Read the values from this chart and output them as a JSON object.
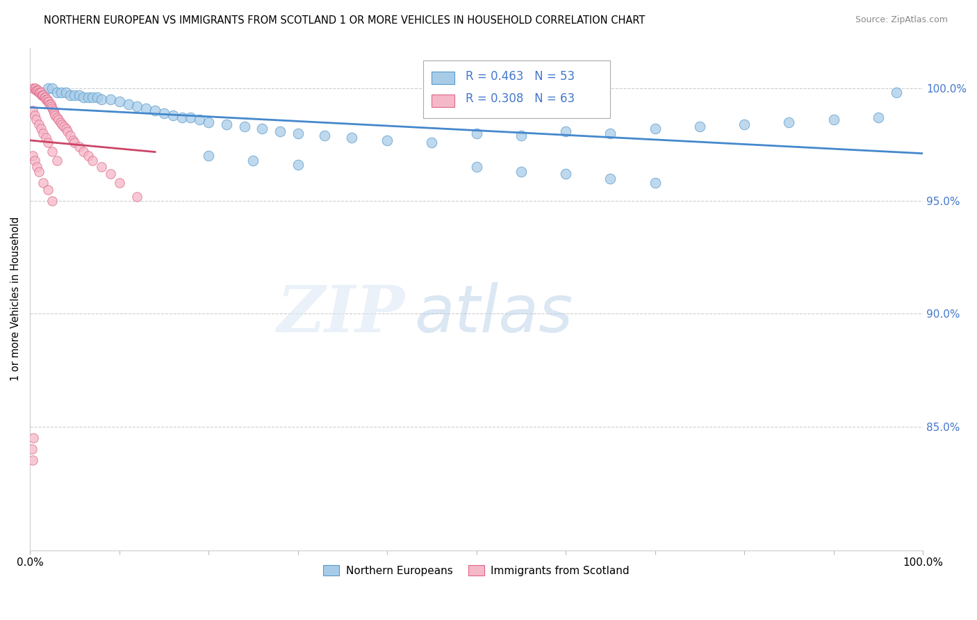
{
  "title": "NORTHERN EUROPEAN VS IMMIGRANTS FROM SCOTLAND 1 OR MORE VEHICLES IN HOUSEHOLD CORRELATION CHART",
  "source": "Source: ZipAtlas.com",
  "ylabel": "1 or more Vehicles in Household",
  "ytick_labels": [
    "100.0%",
    "95.0%",
    "90.0%",
    "85.0%"
  ],
  "ytick_vals": [
    1.0,
    0.95,
    0.9,
    0.85
  ],
  "xlim": [
    0.0,
    1.0
  ],
  "ylim": [
    0.795,
    1.018
  ],
  "legend_label1": "Northern Europeans",
  "legend_label2": "Immigrants from Scotland",
  "legend_R1": "R = 0.463",
  "legend_N1": "N = 53",
  "legend_R2": "R = 0.308",
  "legend_N2": "N = 63",
  "color_blue": "#a8cce8",
  "color_pink": "#f5b8c8",
  "edge_blue": "#5599cc",
  "edge_pink": "#dd6688",
  "line_blue": "#4488cc",
  "line_pink": "#cc4466",
  "watermark_zip": "ZIP",
  "watermark_atlas": "atlas",
  "blue_scatter_x": [
    0.02,
    0.025,
    0.03,
    0.035,
    0.04,
    0.045,
    0.05,
    0.055,
    0.06,
    0.065,
    0.07,
    0.075,
    0.08,
    0.09,
    0.1,
    0.11,
    0.12,
    0.13,
    0.14,
    0.15,
    0.16,
    0.17,
    0.18,
    0.19,
    0.2,
    0.22,
    0.24,
    0.26,
    0.28,
    0.3,
    0.33,
    0.36,
    0.4,
    0.45,
    0.5,
    0.55,
    0.6,
    0.65,
    0.7,
    0.75,
    0.8,
    0.85,
    0.9,
    0.95,
    0.97,
    0.5,
    0.55,
    0.6,
    0.65,
    0.7,
    0.2,
    0.25,
    0.3
  ],
  "blue_scatter_y": [
    1.0,
    1.0,
    0.998,
    0.998,
    0.998,
    0.997,
    0.997,
    0.997,
    0.996,
    0.996,
    0.996,
    0.996,
    0.995,
    0.995,
    0.994,
    0.993,
    0.992,
    0.991,
    0.99,
    0.989,
    0.988,
    0.987,
    0.987,
    0.986,
    0.985,
    0.984,
    0.983,
    0.982,
    0.981,
    0.98,
    0.979,
    0.978,
    0.977,
    0.976,
    0.98,
    0.979,
    0.981,
    0.98,
    0.982,
    0.983,
    0.984,
    0.985,
    0.986,
    0.987,
    0.998,
    0.965,
    0.963,
    0.962,
    0.96,
    0.958,
    0.97,
    0.968,
    0.966
  ],
  "pink_scatter_x": [
    0.003,
    0.005,
    0.006,
    0.007,
    0.008,
    0.009,
    0.01,
    0.011,
    0.012,
    0.013,
    0.014,
    0.015,
    0.016,
    0.017,
    0.018,
    0.019,
    0.02,
    0.021,
    0.022,
    0.023,
    0.024,
    0.025,
    0.026,
    0.027,
    0.028,
    0.03,
    0.032,
    0.034,
    0.036,
    0.038,
    0.04,
    0.042,
    0.045,
    0.048,
    0.05,
    0.055,
    0.06,
    0.065,
    0.07,
    0.08,
    0.09,
    0.1,
    0.12,
    0.003,
    0.005,
    0.007,
    0.01,
    0.012,
    0.015,
    0.018,
    0.02,
    0.025,
    0.03,
    0.003,
    0.005,
    0.008,
    0.01,
    0.015,
    0.02,
    0.025,
    0.002,
    0.003,
    0.004
  ],
  "pink_scatter_y": [
    1.0,
    1.0,
    1.0,
    0.999,
    0.999,
    0.999,
    0.998,
    0.998,
    0.998,
    0.997,
    0.997,
    0.997,
    0.996,
    0.996,
    0.995,
    0.995,
    0.994,
    0.994,
    0.993,
    0.993,
    0.992,
    0.991,
    0.99,
    0.989,
    0.988,
    0.987,
    0.986,
    0.985,
    0.984,
    0.983,
    0.982,
    0.981,
    0.979,
    0.977,
    0.976,
    0.974,
    0.972,
    0.97,
    0.968,
    0.965,
    0.962,
    0.958,
    0.952,
    0.99,
    0.988,
    0.986,
    0.984,
    0.982,
    0.98,
    0.978,
    0.976,
    0.972,
    0.968,
    0.97,
    0.968,
    0.965,
    0.963,
    0.958,
    0.955,
    0.95,
    0.84,
    0.835,
    0.845
  ]
}
